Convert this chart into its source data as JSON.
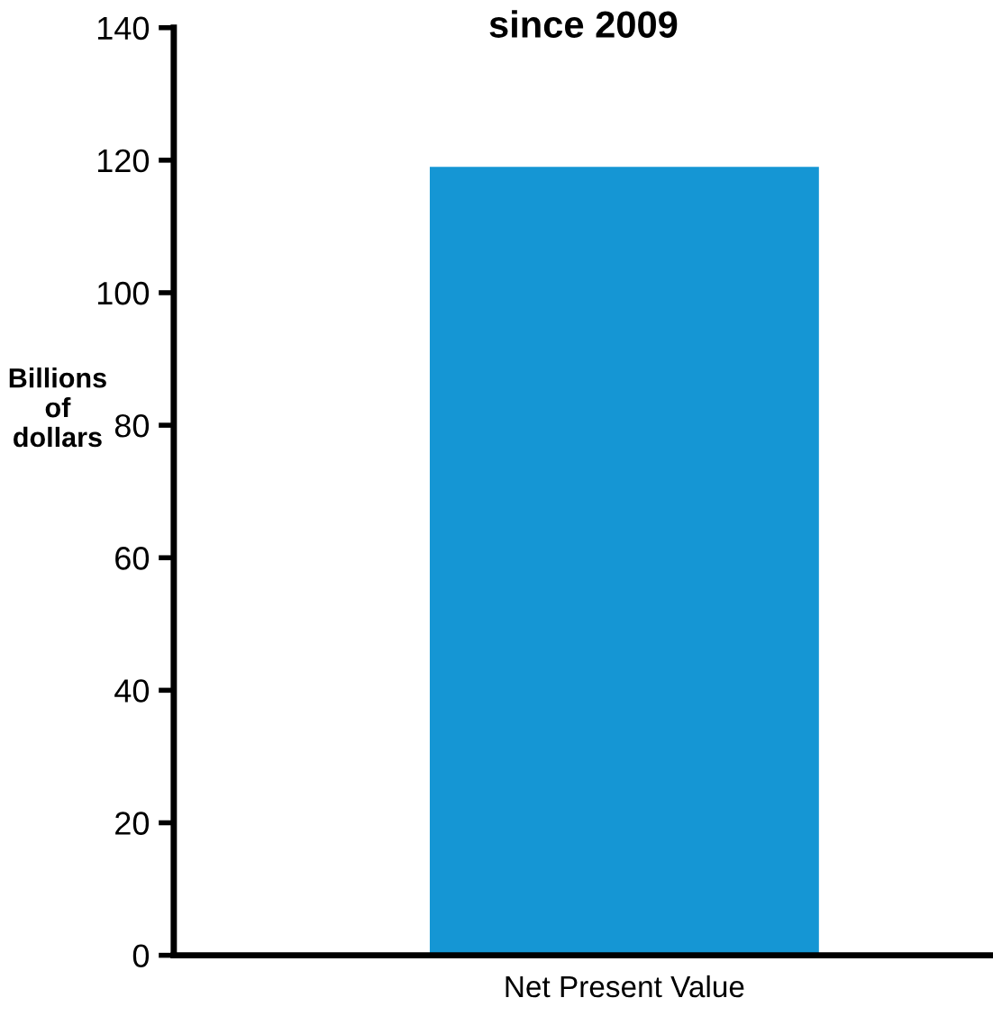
{
  "chart_data": {
    "type": "bar",
    "title": "since 2009",
    "ylabel": "Billions\nof\ndollars",
    "categories": [
      "Net Present Value"
    ],
    "values": [
      119
    ],
    "color": "#1596d4",
    "ylim": [
      0,
      140
    ],
    "yticks": [
      0,
      20,
      40,
      60,
      80,
      100,
      120,
      140
    ],
    "grid": false,
    "legend": false
  }
}
